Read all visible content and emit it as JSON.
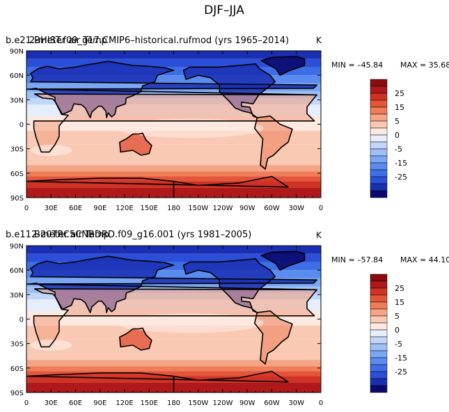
{
  "figure_title": "DJF–JJA",
  "palette": [
    "#0a0a6e",
    "#1a2fb3",
    "#2b4fd8",
    "#3d6ee6",
    "#5a8cf0",
    "#7aa6f4",
    "#9fc0f7",
    "#c2d6fa",
    "#e4eefc",
    "#fde9e0",
    "#f9c9b4",
    "#f5a585",
    "#ef7d5a",
    "#e4563a",
    "#cf3325",
    "#b0191a",
    "#8a0b10"
  ],
  "colorbar": {
    "tick_labels": [
      "25",
      "15",
      "5",
      "0",
      "-5",
      "-15",
      "-25"
    ],
    "levels": [
      -30,
      -25,
      -20,
      -15,
      -10,
      -5,
      0,
      5,
      10,
      15,
      20,
      25,
      30
    ]
  },
  "chart_data": [
    {
      "type": "heatmap",
      "title_left": "b.e21.BHIST.f09_g17.CMIP6–historical.rufmod (yrs 1965–2014)",
      "title_overlap": "2-meter air Temp",
      "units": "K",
      "min_label": "MIN = –45.84",
      "max_label": "MAX =  35.68",
      "min": -45.84,
      "max": 35.68,
      "x_tick_labels": [
        "0",
        "30E",
        "60E",
        "90E",
        "120E",
        "150E",
        "180",
        "150W",
        "120W",
        "90W",
        "60W",
        "30W",
        "0"
      ],
      "y_tick_labels": [
        "90N",
        "60N",
        "30N",
        "0",
        "30S",
        "60S",
        "90S"
      ],
      "xlim": [
        0,
        360
      ],
      "ylim": [
        -90,
        90
      ]
    },
    {
      "type": "heatmap",
      "title_left": "b.e11.B20TRC5CNBDRD.f09_g16.001 (yrs 1981–2005)",
      "title_overlap": "2-meter air Temp",
      "units": "K",
      "min_label": "MIN = –57.84",
      "max_label": "MAX =  44.10",
      "min": -57.84,
      "max": 44.1,
      "x_tick_labels": [
        "0",
        "30E",
        "60E",
        "90E",
        "120E",
        "150E",
        "180",
        "150W",
        "120W",
        "90W",
        "60W",
        "30W",
        "0"
      ],
      "y_tick_labels": [
        "90N",
        "60N",
        "30N",
        "0",
        "30S",
        "60S",
        "90S"
      ],
      "xlim": [
        0,
        360
      ],
      "ylim": [
        -90,
        90
      ]
    }
  ]
}
